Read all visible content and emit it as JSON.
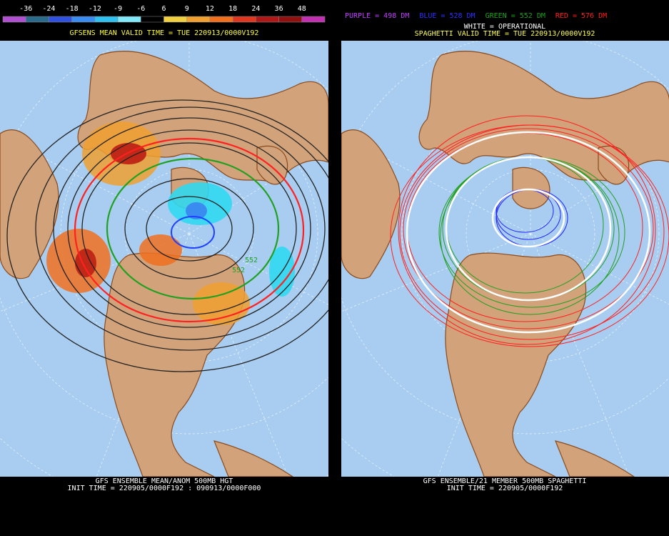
{
  "colorbar": {
    "labels": [
      "-36",
      "-24",
      "-18",
      "-12",
      "-9",
      "-6",
      "6",
      "9",
      "12",
      "18",
      "24",
      "36",
      "48"
    ],
    "colors": [
      "#b050d0",
      "#2a6a8a",
      "#3050e0",
      "#3a8cf0",
      "#30c0f0",
      "#80e8f8",
      "#000000",
      "#f0d040",
      "#f0a030",
      "#f07020",
      "#e03820",
      "#b01818",
      "#901010",
      "#c030b0"
    ]
  },
  "left_panel": {
    "title": "GFSENS MEAN VALID TIME = TUE 220913/0000V192",
    "contour_labels": [
      "552",
      "552"
    ],
    "footer_line1": "GFS ENSEMBLE MEAN/ANOM 500MB HGT",
    "footer_line2": "INIT TIME = 220905/0000F192 : 090913/0000F000"
  },
  "right_panel": {
    "legend": [
      {
        "text": "PURPLE = 498 DM",
        "color": "#c040ff"
      },
      {
        "text": "BLUE = 528 DM",
        "color": "#3030ff"
      },
      {
        "text": "GREEN = 552 DM",
        "color": "#20a020"
      },
      {
        "text": "RED = 576 DM",
        "color": "#ff2020"
      }
    ],
    "operational": "WHITE = OPERATIONAL",
    "title": "SPAGHETTI VALID TIME = TUE 220913/0000V192",
    "footer_line1": "GFS ENSEMBLE/21 MEMBER 500MB SPAGHETTI",
    "footer_line2": "INIT TIME = 220905/0000F192"
  }
}
